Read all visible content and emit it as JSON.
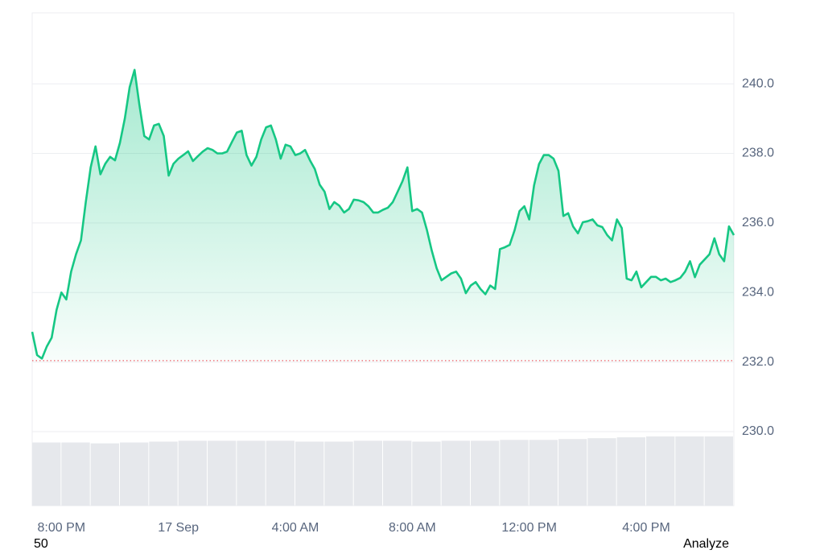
{
  "chart_data": {
    "type": "line",
    "series": [
      {
        "color": "#16c784",
        "values": [
          232.87,
          232.2,
          232.1,
          232.45,
          232.7,
          233.5,
          234.0,
          233.8,
          234.6,
          235.1,
          235.5,
          236.6,
          237.6,
          238.2,
          237.4,
          237.7,
          237.9,
          237.8,
          238.3,
          239.0,
          239.9,
          240.4,
          239.4,
          238.5,
          238.4,
          238.8,
          238.85,
          238.5,
          237.36,
          237.7,
          237.85,
          237.95,
          238.06,
          237.78,
          237.92,
          238.05,
          238.15,
          238.1,
          238.0,
          238.0,
          238.05,
          238.33,
          238.6,
          238.65,
          237.95,
          237.65,
          237.9,
          238.4,
          238.75,
          238.8,
          238.4,
          237.85,
          238.25,
          238.2,
          237.95,
          238.0,
          238.1,
          237.8,
          237.55,
          237.1,
          236.9,
          236.4,
          236.6,
          236.5,
          236.3,
          236.4,
          236.67,
          236.65,
          236.6,
          236.48,
          236.3,
          236.3,
          236.38,
          236.44,
          236.6,
          236.9,
          237.2,
          237.6,
          236.34,
          236.4,
          236.3,
          235.8,
          235.2,
          234.7,
          234.35,
          234.45,
          234.55,
          234.6,
          234.4,
          233.98,
          234.2,
          234.3,
          234.1,
          233.95,
          234.2,
          234.1,
          235.25,
          235.3,
          235.37,
          235.79,
          236.34,
          236.48,
          236.1,
          237.08,
          237.69,
          237.95,
          237.95,
          237.85,
          237.5,
          236.2,
          236.28,
          235.9,
          235.7,
          236.02,
          236.05,
          236.1,
          235.93,
          235.88,
          235.65,
          235.5,
          236.1,
          235.85,
          234.4,
          234.35,
          234.6,
          234.15,
          234.3,
          234.45,
          234.45,
          234.35,
          234.4,
          234.3,
          234.35,
          234.42,
          234.6,
          234.9,
          234.44,
          234.8,
          234.95,
          235.1,
          235.56,
          235.1,
          234.9,
          235.9,
          235.65
        ]
      }
    ],
    "baseline": {
      "value": 232.04,
      "color": "#ea3943"
    },
    "volume": {
      "color": "#e6e8ec",
      "values": [
        73,
        73,
        72,
        73,
        74,
        75,
        75,
        75,
        75,
        74,
        74,
        75,
        75,
        74,
        75,
        75,
        76,
        76,
        77,
        78,
        79,
        80,
        80,
        80
      ]
    },
    "xlim": [
      0,
      144
    ],
    "xticks": [
      {
        "value": 6,
        "label": "8:00 PM"
      },
      {
        "value": 30,
        "label": "17 Sep"
      },
      {
        "value": 54,
        "label": "4:00 AM"
      },
      {
        "value": 78,
        "label": "8:00 AM"
      },
      {
        "value": 102,
        "label": "12:00 PM"
      },
      {
        "value": 126,
        "label": "4:00 PM"
      }
    ],
    "ylim": [
      227.87,
      242.04
    ],
    "yticks": [
      {
        "value": 230,
        "label": "230.0"
      },
      {
        "value": 232,
        "label": "232.0"
      },
      {
        "value": 234,
        "label": "234.0"
      },
      {
        "value": 236,
        "label": "236.0"
      },
      {
        "value": 238,
        "label": "238.0"
      },
      {
        "value": 240,
        "label": "240.0"
      }
    ],
    "grid": true
  },
  "footer": {
    "left": "50",
    "right": "Analyze"
  }
}
